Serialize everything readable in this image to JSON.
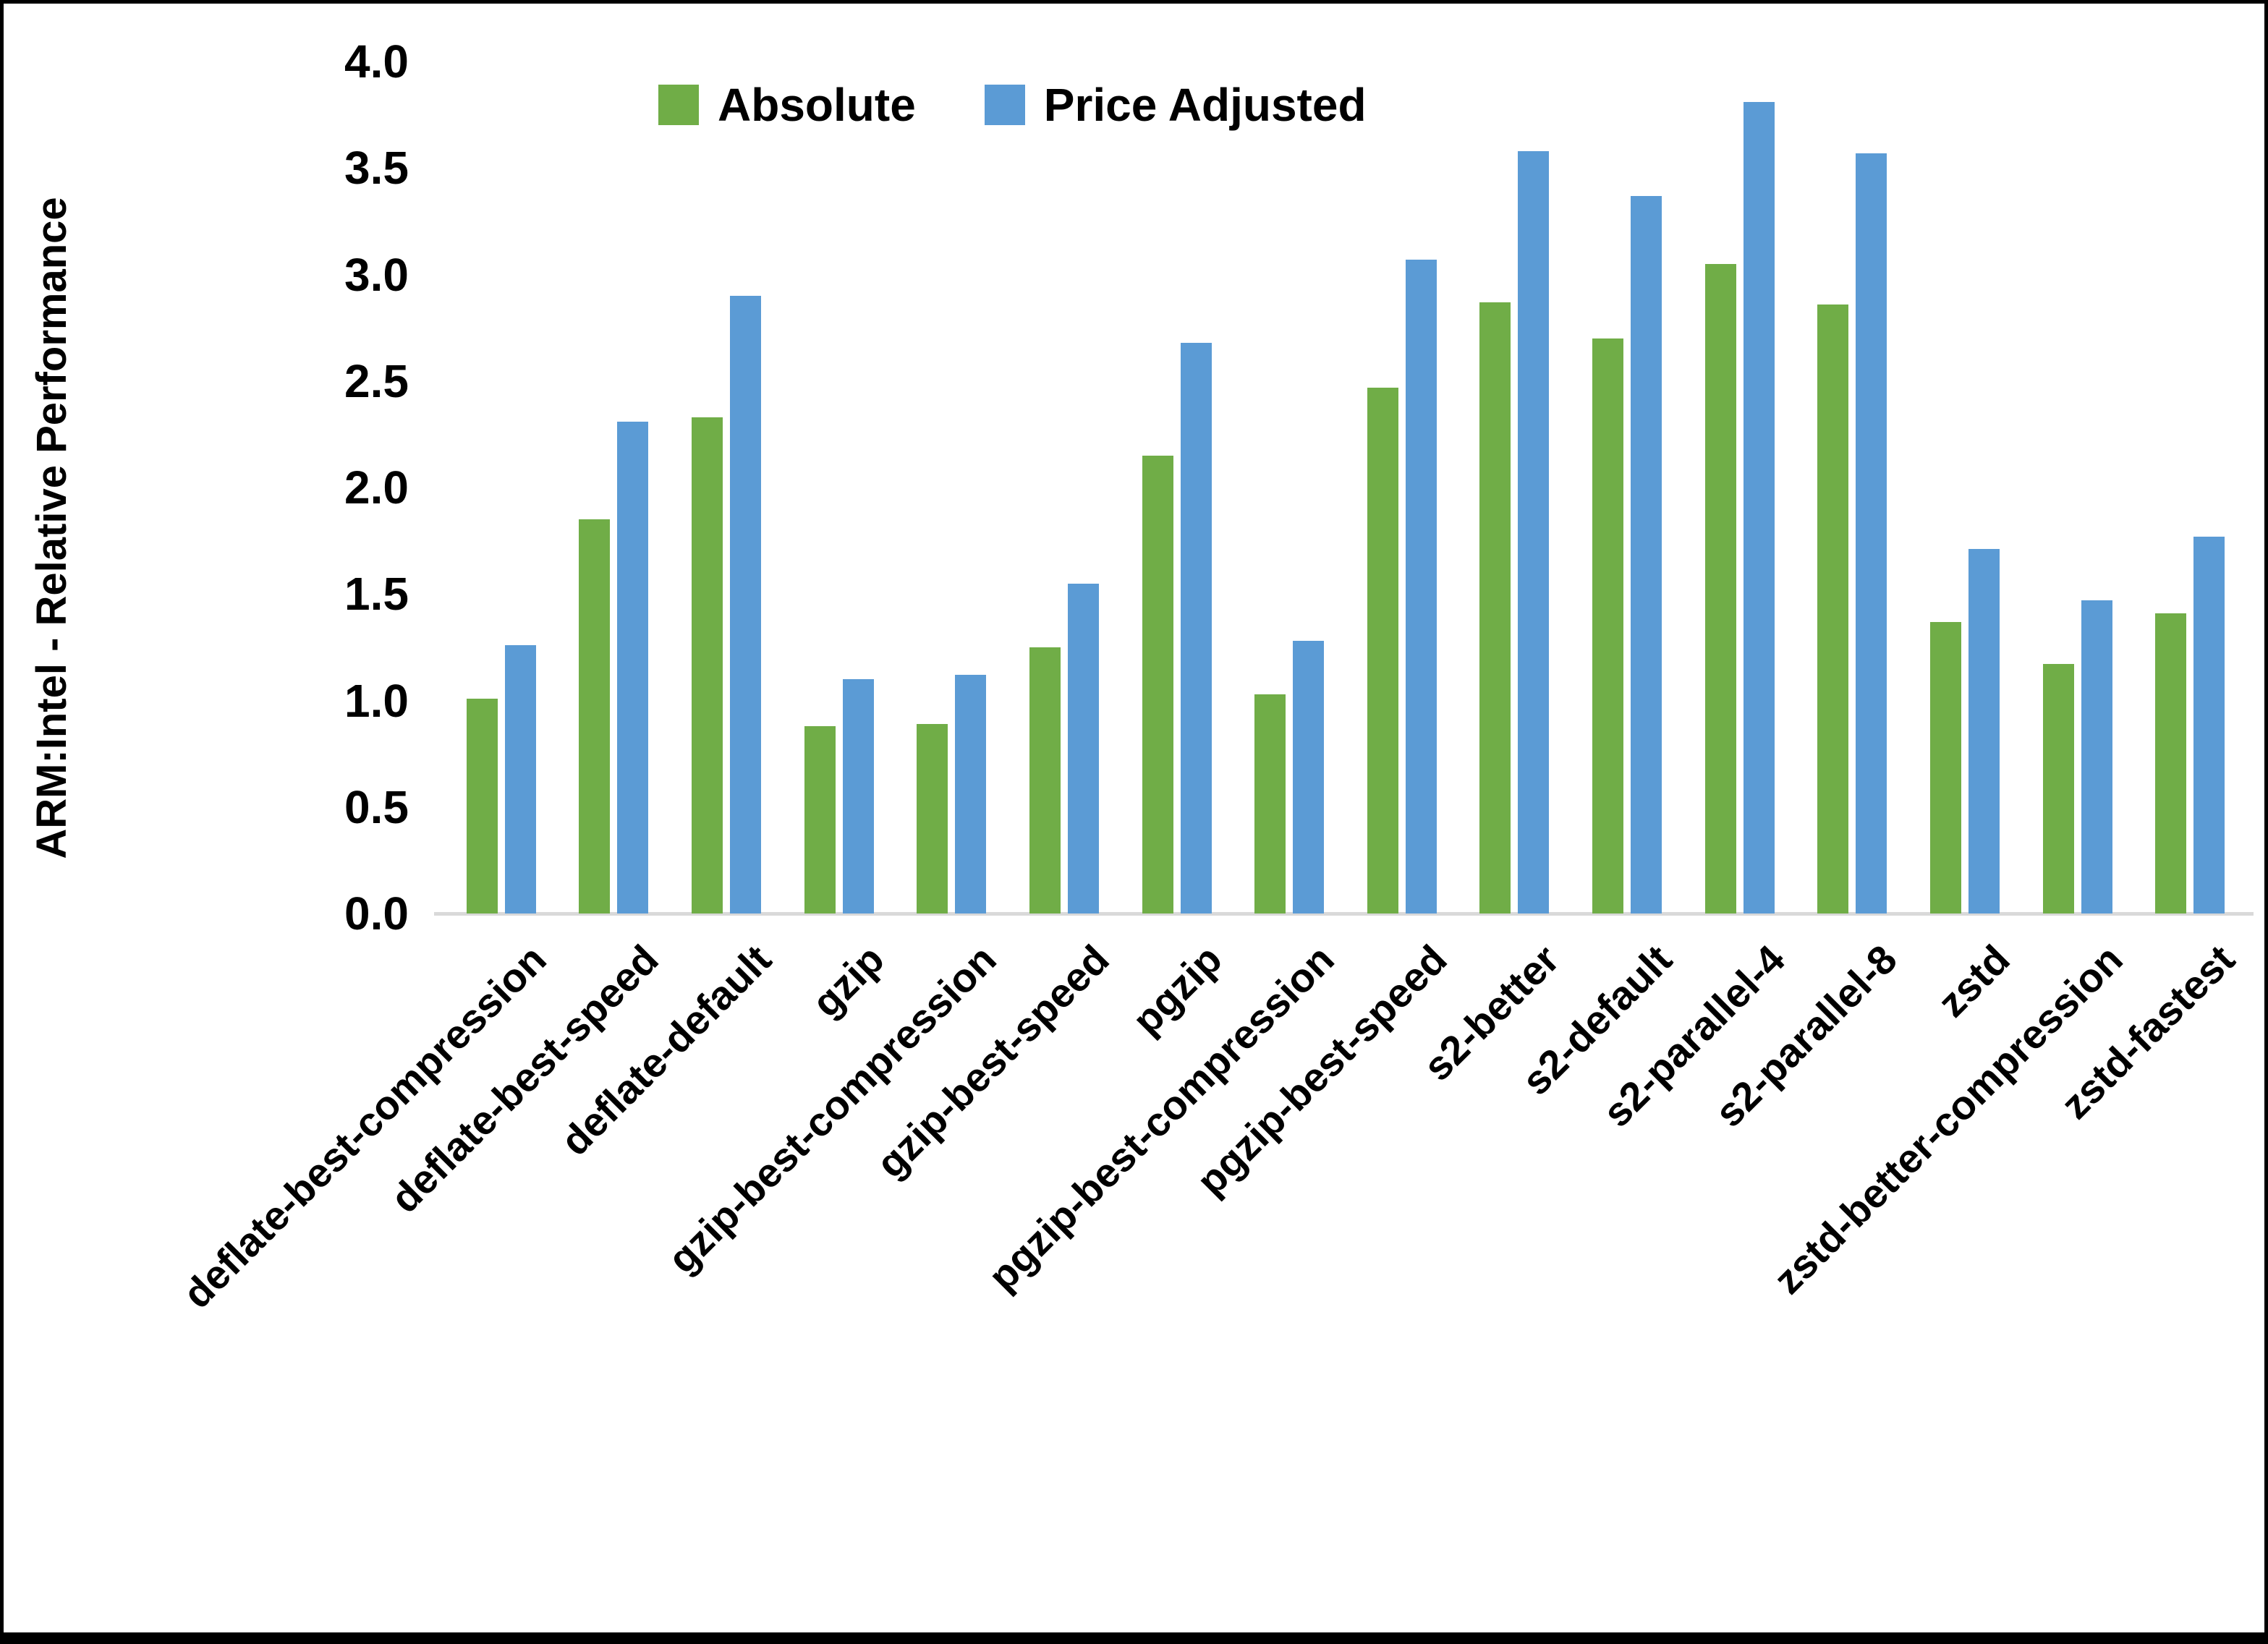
{
  "chart_data": {
    "type": "bar",
    "title": "",
    "xlabel": "",
    "ylabel": "ARM:Intel - Relative Performance",
    "ylim": [
      0.0,
      4.0
    ],
    "ytick_step": 0.5,
    "ytick_labels": [
      "0.0",
      "0.5",
      "1.0",
      "1.5",
      "2.0",
      "2.5",
      "3.0",
      "3.5",
      "4.0"
    ],
    "grid": false,
    "legend_position": "top-center",
    "categories": [
      "deflate-best-compression",
      "deflate-best-speed",
      "deflate-default",
      "gzip",
      "gzip-best-compression",
      "gzip-best-speed",
      "pgzip",
      "pgzip-best-compression",
      "pgzip-best-speed",
      "s2-better",
      "s2-default",
      "s2-parallel-4",
      "s2-parallel-8",
      "zstd",
      "zstd-better-compression",
      "zstd-fastest"
    ],
    "series": [
      {
        "name": "Absolute",
        "color": "#70AD47",
        "values": [
          1.01,
          1.85,
          2.33,
          0.88,
          0.89,
          1.25,
          2.15,
          1.03,
          2.47,
          2.87,
          2.7,
          3.05,
          2.86,
          1.37,
          1.17,
          1.41
        ]
      },
      {
        "name": "Price Adjusted",
        "color": "#5B9BD5",
        "values": [
          1.26,
          2.31,
          2.9,
          1.1,
          1.12,
          1.55,
          2.68,
          1.28,
          3.07,
          3.58,
          3.37,
          3.81,
          3.57,
          1.71,
          1.47,
          1.77
        ]
      }
    ]
  },
  "colors": {
    "background": "#FFFFFF",
    "border": "#000000",
    "axis_line": "#D9D9D9",
    "text": "#000000",
    "series_absolute": "#70AD47",
    "series_price_adjusted": "#5B9BD5"
  }
}
